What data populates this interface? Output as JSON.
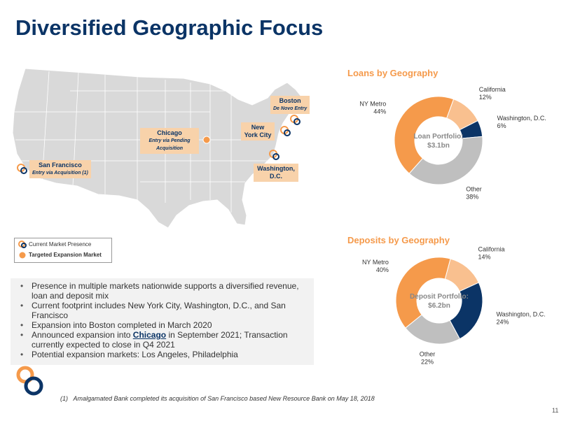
{
  "title": "Diversified Geographic Focus",
  "map": {
    "labels": [
      {
        "name": "San Francisco",
        "note": "Entry via Acquisition (1)"
      },
      {
        "name": "Chicago",
        "note": "Entry via Pending Acquisition"
      },
      {
        "name": "Boston",
        "note": "De Novo Entry"
      },
      {
        "name": "New York City"
      },
      {
        "name": "Washington, D.C."
      }
    ],
    "legend": [
      "Current Market Presence",
      "Targeted Expansion Market"
    ]
  },
  "bullets": [
    "Presence in multiple markets nationwide supports a diversified revenue, loan and deposit mix",
    "Current footprint includes New York City, Washington, D.C., and San Francisco",
    "Expansion into Boston completed in March 2020",
    {
      "before": "Announced expansion into ",
      "link": "Chicago",
      "after": " in September 2021; Transaction currently expected to close in Q4 2021"
    },
    "Potential expansion markets: Los Angeles, Philadelphia"
  ],
  "footnote": {
    "marker": "(1)",
    "text": "Amalgamated Bank completed its acquisition of San Francisco based New Resource Bank on May 18, 2018"
  },
  "page_number": "11",
  "chart_data": [
    {
      "type": "donut",
      "title": "Loans by Geography",
      "center_label": "Loan Portfolio:",
      "center_value": "$3.1bn",
      "categories": [
        "California",
        "Washington, D.C.",
        "Other",
        "NY Metro"
      ],
      "values": [
        12,
        6,
        38,
        44
      ],
      "value_labels": [
        "12%",
        "6%",
        "38%",
        "44%"
      ],
      "colors": [
        "#f9c08f",
        "#0b3466",
        "#bfbfbf",
        "#f59a4b"
      ]
    },
    {
      "type": "donut",
      "title": "Deposits by Geography",
      "center_label": "Deposit Portfolio:",
      "center_value": "$6.2bn",
      "categories": [
        "California",
        "Washington, D.C.",
        "Other",
        "NY Metro"
      ],
      "values": [
        14,
        24,
        22,
        40
      ],
      "value_labels": [
        "14%",
        "24%",
        "22%",
        "40%"
      ],
      "colors": [
        "#f9c08f",
        "#0b3466",
        "#bfbfbf",
        "#f59a4b"
      ]
    }
  ]
}
